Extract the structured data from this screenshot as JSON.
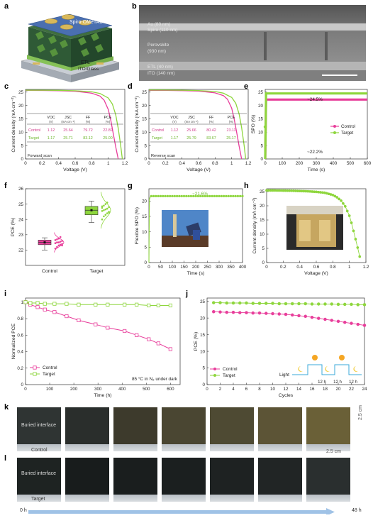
{
  "panels": {
    "a": {
      "letter": "a",
      "layers": {
        "au": "Au",
        "spiro": "Spiro-OMeTAD",
        "etl": "ETL",
        "ito": "ITO/Glass"
      }
    },
    "b": {
      "letter": "b",
      "layers": [
        {
          "name": "Au (80 nm)"
        },
        {
          "name": "Spiro (110 nm)"
        },
        {
          "name": "Perovskite",
          "sub": "(930 nm)"
        },
        {
          "name": "ETL (40 nm)"
        },
        {
          "name": "ITO (140 nm)"
        }
      ]
    },
    "c": {
      "letter": "c",
      "xlabel": "Voltage (V)",
      "ylabel": "Current density (mA cm⁻²)",
      "note": "Forward scan",
      "table": {
        "headers": [
          "VOC (V)",
          "JSC (mA cm⁻²)",
          "FF (%)",
          "PCE (%)"
        ],
        "rows": [
          {
            "name": "Control",
            "values": [
              "1.12",
              "25.64",
              "79.72",
              "22.89"
            ]
          },
          {
            "name": "Target",
            "values": [
              "1.17",
              "25.71",
              "83.12",
              "25.00"
            ]
          }
        ]
      }
    },
    "d": {
      "letter": "d",
      "xlabel": "Voltage (V)",
      "ylabel": "Current density (mA cm⁻²)",
      "note": "Reverse scan",
      "table": {
        "headers": [
          "VOC (V)",
          "JSC (mA cm⁻²)",
          "FF (%)",
          "PCE (%)"
        ],
        "rows": [
          {
            "name": "Control",
            "values": [
              "1.12",
              "25.66",
              "80.42",
              "23.11"
            ]
          },
          {
            "name": "Target",
            "values": [
              "1.17",
              "25.79",
              "83.67",
              "25.17"
            ]
          }
        ]
      }
    },
    "e": {
      "letter": "e",
      "xlabel": "Time (s)",
      "ylabel": "SPO (%)",
      "annotations": [
        "~24.5%",
        "~22.2%"
      ],
      "legend": [
        "Control",
        "Target"
      ]
    },
    "f": {
      "letter": "f",
      "ylabel": "PCE (%)",
      "categories": [
        "Control",
        "Target"
      ]
    },
    "g": {
      "letter": "g",
      "xlabel": "Time (s)",
      "ylabel": "Flexible SPO (%)",
      "annotation": "~21.6%"
    },
    "h": {
      "letter": "h",
      "xlabel": "Voltage (V)",
      "ylabel": "Current density (mA cm⁻²)"
    },
    "i": {
      "letter": "i",
      "xlabel": "Time (h)",
      "ylabel": "Normalized PCE",
      "legend": [
        "Control",
        "Target"
      ],
      "note": "85 °C in N₂ under dark"
    },
    "j": {
      "letter": "j",
      "xlabel": "Cycles",
      "ylabel": "PCE (%)",
      "legend": [
        "Control",
        "Target"
      ],
      "light_label": "Light",
      "period_labels": [
        "12 h",
        "12 h",
        "12 h"
      ]
    },
    "k": {
      "letter": "k",
      "interface_label": "Buried interface",
      "sample_label": "Control",
      "size_vertical": "2.5 cm",
      "size_horizontal": "2.5 cm"
    },
    "l": {
      "letter": "l",
      "interface_label": "Buried interface",
      "sample_label": "Target",
      "time_start": "0 h",
      "time_end": "48 h"
    }
  },
  "colors": {
    "control": "#e83e9b",
    "target": "#8ed63d",
    "tableControl": "#d13a8c",
    "tableTarget": "#6fb82f"
  },
  "chart_data": [
    {
      "panel": "c",
      "type": "line",
      "xlabel": "Voltage (V)",
      "ylabel": "Current density (mA cm⁻²)",
      "xlim": [
        0,
        1.2
      ],
      "ylim": [
        0,
        26
      ],
      "xticks": [
        0,
        0.2,
        0.4,
        0.6,
        0.8,
        1.0,
        1.2
      ],
      "yticks": [
        0,
        5,
        10,
        15,
        20,
        25
      ],
      "series": [
        {
          "name": "Control",
          "x": [
            0,
            0.2,
            0.4,
            0.6,
            0.8,
            0.9,
            0.95,
            1.0,
            1.03,
            1.06,
            1.09,
            1.12
          ],
          "y": [
            25.64,
            25.6,
            25.5,
            25.3,
            24.6,
            23.5,
            22.0,
            18.5,
            14.5,
            9.5,
            4.5,
            0
          ]
        },
        {
          "name": "Target",
          "x": [
            0,
            0.2,
            0.4,
            0.6,
            0.8,
            0.9,
            1.0,
            1.05,
            1.09,
            1.12,
            1.15,
            1.17
          ],
          "y": [
            25.71,
            25.7,
            25.65,
            25.5,
            25.1,
            24.5,
            22.8,
            20.5,
            16.5,
            11.5,
            5.0,
            0
          ]
        }
      ]
    },
    {
      "panel": "d",
      "type": "line",
      "xlabel": "Voltage (V)",
      "ylabel": "Current density (mA cm⁻²)",
      "xlim": [
        0,
        1.2
      ],
      "ylim": [
        0,
        26
      ],
      "xticks": [
        0,
        0.2,
        0.4,
        0.6,
        0.8,
        1.0,
        1.2
      ],
      "yticks": [
        0,
        5,
        10,
        15,
        20,
        25
      ],
      "series": [
        {
          "name": "Control",
          "x": [
            0,
            0.2,
            0.4,
            0.6,
            0.8,
            0.9,
            0.95,
            1.0,
            1.03,
            1.06,
            1.09,
            1.12
          ],
          "y": [
            25.66,
            25.62,
            25.55,
            25.35,
            24.7,
            23.7,
            22.3,
            19.0,
            15.0,
            10.0,
            4.8,
            0
          ]
        },
        {
          "name": "Target",
          "x": [
            0,
            0.2,
            0.4,
            0.6,
            0.8,
            0.9,
            1.0,
            1.05,
            1.09,
            1.12,
            1.15,
            1.17
          ],
          "y": [
            25.79,
            25.77,
            25.72,
            25.58,
            25.2,
            24.6,
            23.0,
            20.8,
            16.8,
            11.8,
            5.2,
            0
          ]
        }
      ]
    },
    {
      "panel": "e",
      "type": "line",
      "xlabel": "Time (s)",
      "ylabel": "SPO (%)",
      "xlim": [
        0,
        600
      ],
      "ylim": [
        0,
        26
      ],
      "xticks": [
        0,
        100,
        200,
        300,
        400,
        500,
        600
      ],
      "yticks": [
        0,
        5,
        10,
        15,
        20,
        25
      ],
      "series": [
        {
          "name": "Control",
          "x": [
            0,
            5,
            50,
            100,
            200,
            300,
            400,
            500,
            600
          ],
          "y": [
            0,
            22.2,
            22.2,
            22.2,
            22.2,
            22.2,
            22.2,
            22.2,
            22.2
          ]
        },
        {
          "name": "Target",
          "x": [
            0,
            5,
            50,
            100,
            200,
            300,
            400,
            500,
            600
          ],
          "y": [
            0,
            24.5,
            24.5,
            24.5,
            24.5,
            24.5,
            24.5,
            24.5,
            24.5
          ]
        }
      ]
    },
    {
      "panel": "f",
      "type": "scatter",
      "ylabel": "PCE (%)",
      "categories": [
        "Control",
        "Target"
      ],
      "ylim": [
        21,
        26
      ],
      "yticks": [
        22,
        23,
        24,
        25,
        26
      ],
      "series": [
        {
          "name": "Control",
          "box": {
            "min": 22.0,
            "q1": 22.35,
            "median": 22.5,
            "q3": 22.65,
            "max": 22.8
          },
          "points": [
            22.1,
            22.2,
            22.3,
            22.35,
            22.4,
            22.45,
            22.5,
            22.5,
            22.55,
            22.6,
            22.65,
            22.7,
            22.75,
            22.85,
            22.3,
            22.45
          ]
        },
        {
          "name": "Target",
          "box": {
            "min": 23.8,
            "q1": 24.3,
            "median": 24.6,
            "q3": 24.85,
            "max": 25.2
          },
          "points": [
            24.0,
            24.2,
            24.3,
            24.4,
            24.5,
            24.55,
            24.6,
            24.65,
            24.7,
            24.8,
            24.85,
            24.9,
            25.0,
            25.1,
            24.45,
            24.75
          ]
        }
      ]
    },
    {
      "panel": "g",
      "type": "line",
      "xlabel": "Time (s)",
      "ylabel": "Flexible SPO (%)",
      "xlim": [
        0,
        400
      ],
      "ylim": [
        0,
        24
      ],
      "xticks": [
        0,
        50,
        100,
        150,
        200,
        250,
        300,
        350,
        400
      ],
      "yticks": [
        0,
        5,
        10,
        15,
        20
      ],
      "series": [
        {
          "name": "Flexible",
          "x": [
            0,
            2,
            5,
            10,
            20,
            50,
            100,
            150,
            200,
            250,
            300,
            350,
            400
          ],
          "y": [
            0,
            20.5,
            21.2,
            21.5,
            21.6,
            21.6,
            21.6,
            21.6,
            21.6,
            21.6,
            21.6,
            21.6,
            21.6
          ]
        }
      ]
    },
    {
      "panel": "h",
      "type": "line",
      "xlabel": "Voltage (V)",
      "ylabel": "Current density (mA cm⁻²)",
      "xlim": [
        0,
        1.2
      ],
      "ylim": [
        0,
        26
      ],
      "xticks": [
        0,
        0.2,
        0.4,
        0.6,
        0.8,
        1.0,
        1.2
      ],
      "yticks": [
        0,
        5,
        10,
        15,
        20,
        25
      ],
      "series": [
        {
          "name": "Flexible",
          "x": [
            0,
            0.1,
            0.2,
            0.3,
            0.4,
            0.5,
            0.6,
            0.7,
            0.8,
            0.85,
            0.9,
            0.95,
            1.0,
            1.03,
            1.06,
            1.09,
            1.12,
            1.14
          ],
          "y": [
            25.4,
            25.4,
            25.35,
            25.3,
            25.2,
            25.1,
            24.9,
            24.6,
            23.8,
            23.0,
            21.8,
            19.8,
            16.5,
            13.5,
            10.0,
            6.5,
            2.8,
            0
          ]
        }
      ]
    },
    {
      "panel": "i",
      "type": "line",
      "xlabel": "Time (h)",
      "ylabel": "Normalized PCE",
      "xlim": [
        0,
        640
      ],
      "ylim": [
        0,
        1.05
      ],
      "xticks": [
        0,
        100,
        200,
        300,
        400,
        500,
        600
      ],
      "yticks": [
        0,
        0.2,
        0.4,
        0.6,
        0.8,
        1.0
      ],
      "series": [
        {
          "name": "Control",
          "x": [
            0,
            20,
            50,
            80,
            120,
            170,
            220,
            290,
            340,
            410,
            460,
            510,
            550,
            600
          ],
          "y": [
            1.0,
            0.97,
            0.94,
            0.91,
            0.88,
            0.83,
            0.78,
            0.73,
            0.69,
            0.65,
            0.6,
            0.55,
            0.5,
            0.43
          ]
        },
        {
          "name": "Target",
          "x": [
            0,
            20,
            50,
            80,
            120,
            170,
            220,
            290,
            340,
            410,
            460,
            510,
            550,
            600
          ],
          "y": [
            1.0,
            0.99,
            0.99,
            0.98,
            0.98,
            0.98,
            0.97,
            0.97,
            0.97,
            0.97,
            0.97,
            0.96,
            0.96,
            0.96
          ]
        }
      ]
    },
    {
      "panel": "j",
      "type": "line",
      "xlabel": "Cycles",
      "ylabel": "PCE (%)",
      "xlim": [
        0,
        24
      ],
      "ylim": [
        0,
        26
      ],
      "xticks": [
        0,
        2,
        4,
        6,
        8,
        10,
        12,
        14,
        16,
        18,
        20,
        22,
        24
      ],
      "yticks": [
        0,
        5,
        10,
        15,
        20,
        25
      ],
      "series": [
        {
          "name": "Control",
          "x": [
            1,
            2,
            3,
            4,
            5,
            6,
            7,
            8,
            9,
            10,
            11,
            12,
            13,
            14,
            15,
            16,
            17,
            18,
            19,
            20,
            21,
            22,
            23,
            24
          ],
          "y": [
            21.9,
            21.8,
            21.7,
            21.7,
            21.6,
            21.6,
            21.5,
            21.5,
            21.4,
            21.3,
            21.2,
            21.1,
            20.9,
            20.7,
            20.5,
            20.2,
            19.9,
            19.6,
            19.3,
            19.0,
            18.7,
            18.4,
            18.1,
            17.8
          ]
        },
        {
          "name": "Target",
          "x": [
            1,
            2,
            3,
            4,
            5,
            6,
            7,
            8,
            9,
            10,
            11,
            12,
            13,
            14,
            15,
            16,
            17,
            18,
            19,
            20,
            21,
            22,
            23,
            24
          ],
          "y": [
            24.6,
            24.6,
            24.5,
            24.5,
            24.5,
            24.5,
            24.4,
            24.4,
            24.4,
            24.4,
            24.3,
            24.3,
            24.3,
            24.3,
            24.3,
            24.2,
            24.2,
            24.2,
            24.2,
            24.1,
            24.1,
            24.1,
            24.0,
            24.0
          ]
        }
      ]
    }
  ]
}
